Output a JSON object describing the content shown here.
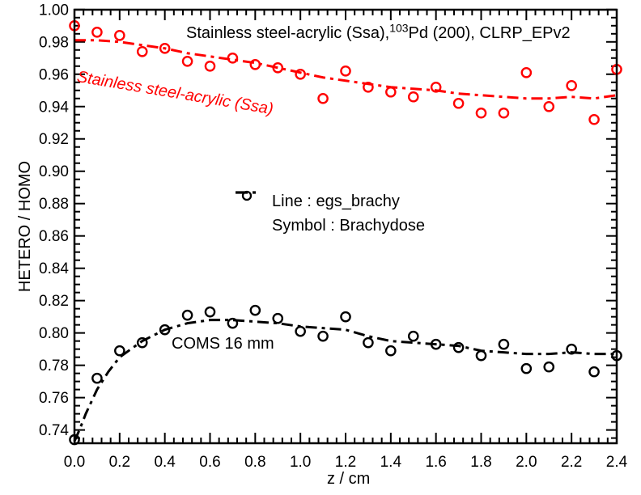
{
  "figure": {
    "title": {
      "part1": "Stainless steel-acrylic (Ssa),",
      "superscript": "103",
      "part2": "Pd (200), CLRP_EPv2"
    },
    "xlabel": "z / cm",
    "ylabel": "HETERO / HOMO",
    "legend": {
      "line_label": "Line : egs_brachy",
      "symbol_label": "Symbol : Brachydose"
    },
    "annotations": {
      "red_curve_label": "Stainless steel-acrylic (Ssa)",
      "black_curve_label": "COMS 16 mm"
    },
    "colors": {
      "red": "#ff0000",
      "black": "#000000"
    }
  },
  "chart_data": {
    "type": "line+scatter",
    "title": "Stainless steel-acrylic (Ssa), 103Pd (200), CLRP_EPv2",
    "xlabel": "z / cm",
    "ylabel": "HETERO / HOMO",
    "xlim": [
      0.0,
      2.4
    ],
    "ylim": [
      0.7318,
      0.9999
    ],
    "grid": false,
    "legend_position": "center",
    "x_ticks": {
      "major": [
        0.0,
        0.2,
        0.4,
        0.6,
        0.8,
        1.0,
        1.2,
        1.4,
        1.6,
        1.8,
        2.0,
        2.2,
        2.4
      ],
      "labels": [
        "0.0",
        "0.2",
        "0.4",
        "0.6",
        "0.8",
        "1.0",
        "1.2",
        "1.4",
        "1.6",
        "1.8",
        "2.0",
        "2.2",
        "2.4"
      ],
      "major_step": 0.2,
      "minor_step": 0.04
    },
    "y_ticks": {
      "major": [
        0.74,
        0.76,
        0.78,
        0.8,
        0.82,
        0.84,
        0.86,
        0.88,
        0.9,
        0.92,
        0.94,
        0.96,
        0.98,
        1.0
      ],
      "labels": [
        "0.74",
        "0.76",
        "0.78",
        "0.80",
        "0.82",
        "0.84",
        "0.86",
        "0.88",
        "0.90",
        "0.92",
        "0.94",
        "0.96",
        "0.98",
        "1.00"
      ],
      "major_step": 0.02,
      "minor_step": 0.005
    },
    "series": [
      {
        "id": "ssa-line",
        "name": "Stainless steel-acrylic (Ssa) — egs_brachy",
        "type": "line",
        "color": "#ff0000",
        "x": [
          0.0,
          0.1,
          0.2,
          0.3,
          0.4,
          0.5,
          0.6,
          0.7,
          0.8,
          0.9,
          1.0,
          1.1,
          1.2,
          1.3,
          1.4,
          1.5,
          1.6,
          1.7,
          1.8,
          1.9,
          2.0,
          2.1,
          2.2,
          2.3,
          2.4
        ],
        "y": [
          0.981,
          0.981,
          0.98,
          0.978,
          0.976,
          0.973,
          0.971,
          0.969,
          0.967,
          0.964,
          0.961,
          0.958,
          0.956,
          0.954,
          0.952,
          0.951,
          0.95,
          0.948,
          0.947,
          0.946,
          0.945,
          0.945,
          0.946,
          0.945,
          0.947
        ]
      },
      {
        "id": "ssa-symbols",
        "name": "Stainless steel-acrylic (Ssa) — Brachydose",
        "type": "scatter",
        "color": "#ff0000",
        "x": [
          0.0,
          0.1,
          0.2,
          0.3,
          0.4,
          0.5,
          0.6,
          0.7,
          0.8,
          0.9,
          1.0,
          1.1,
          1.2,
          1.3,
          1.4,
          1.5,
          1.6,
          1.7,
          1.8,
          1.9,
          2.0,
          2.1,
          2.2,
          2.3,
          2.4
        ],
        "y": [
          0.99,
          0.986,
          0.984,
          0.974,
          0.976,
          0.968,
          0.965,
          0.97,
          0.966,
          0.964,
          0.96,
          0.945,
          0.962,
          0.952,
          0.949,
          0.946,
          0.952,
          0.942,
          0.936,
          0.936,
          0.961,
          0.94,
          0.953,
          0.932,
          0.963
        ]
      },
      {
        "id": "coms-line",
        "name": "COMS 16 mm — egs_brachy",
        "type": "line",
        "color": "#000000",
        "x": [
          0.0,
          0.025,
          0.05,
          0.1,
          0.15,
          0.2,
          0.25,
          0.3,
          0.4,
          0.5,
          0.6,
          0.7,
          0.8,
          0.9,
          1.0,
          1.1,
          1.2,
          1.3,
          1.4,
          1.5,
          1.6,
          1.7,
          1.8,
          1.9,
          2.0,
          2.1,
          2.2,
          2.3,
          2.4
        ],
        "y": [
          0.733,
          0.741,
          0.75,
          0.765,
          0.776,
          0.785,
          0.79,
          0.795,
          0.802,
          0.806,
          0.808,
          0.808,
          0.807,
          0.806,
          0.804,
          0.803,
          0.802,
          0.798,
          0.795,
          0.794,
          0.793,
          0.792,
          0.789,
          0.788,
          0.787,
          0.787,
          0.788,
          0.787,
          0.787
        ]
      },
      {
        "id": "coms-symbols",
        "name": "COMS 16 mm — Brachydose",
        "type": "scatter",
        "color": "#000000",
        "x": [
          0.0,
          0.1,
          0.2,
          0.3,
          0.4,
          0.5,
          0.6,
          0.7,
          0.8,
          0.9,
          1.0,
          1.1,
          1.2,
          1.3,
          1.4,
          1.5,
          1.6,
          1.7,
          1.8,
          1.9,
          2.0,
          2.1,
          2.2,
          2.3,
          2.4
        ],
        "y": [
          0.734,
          0.772,
          0.789,
          0.794,
          0.802,
          0.811,
          0.813,
          0.806,
          0.814,
          0.809,
          0.801,
          0.798,
          0.81,
          0.794,
          0.789,
          0.798,
          0.793,
          0.791,
          0.786,
          0.793,
          0.778,
          0.779,
          0.79,
          0.776,
          0.786
        ]
      }
    ]
  }
}
